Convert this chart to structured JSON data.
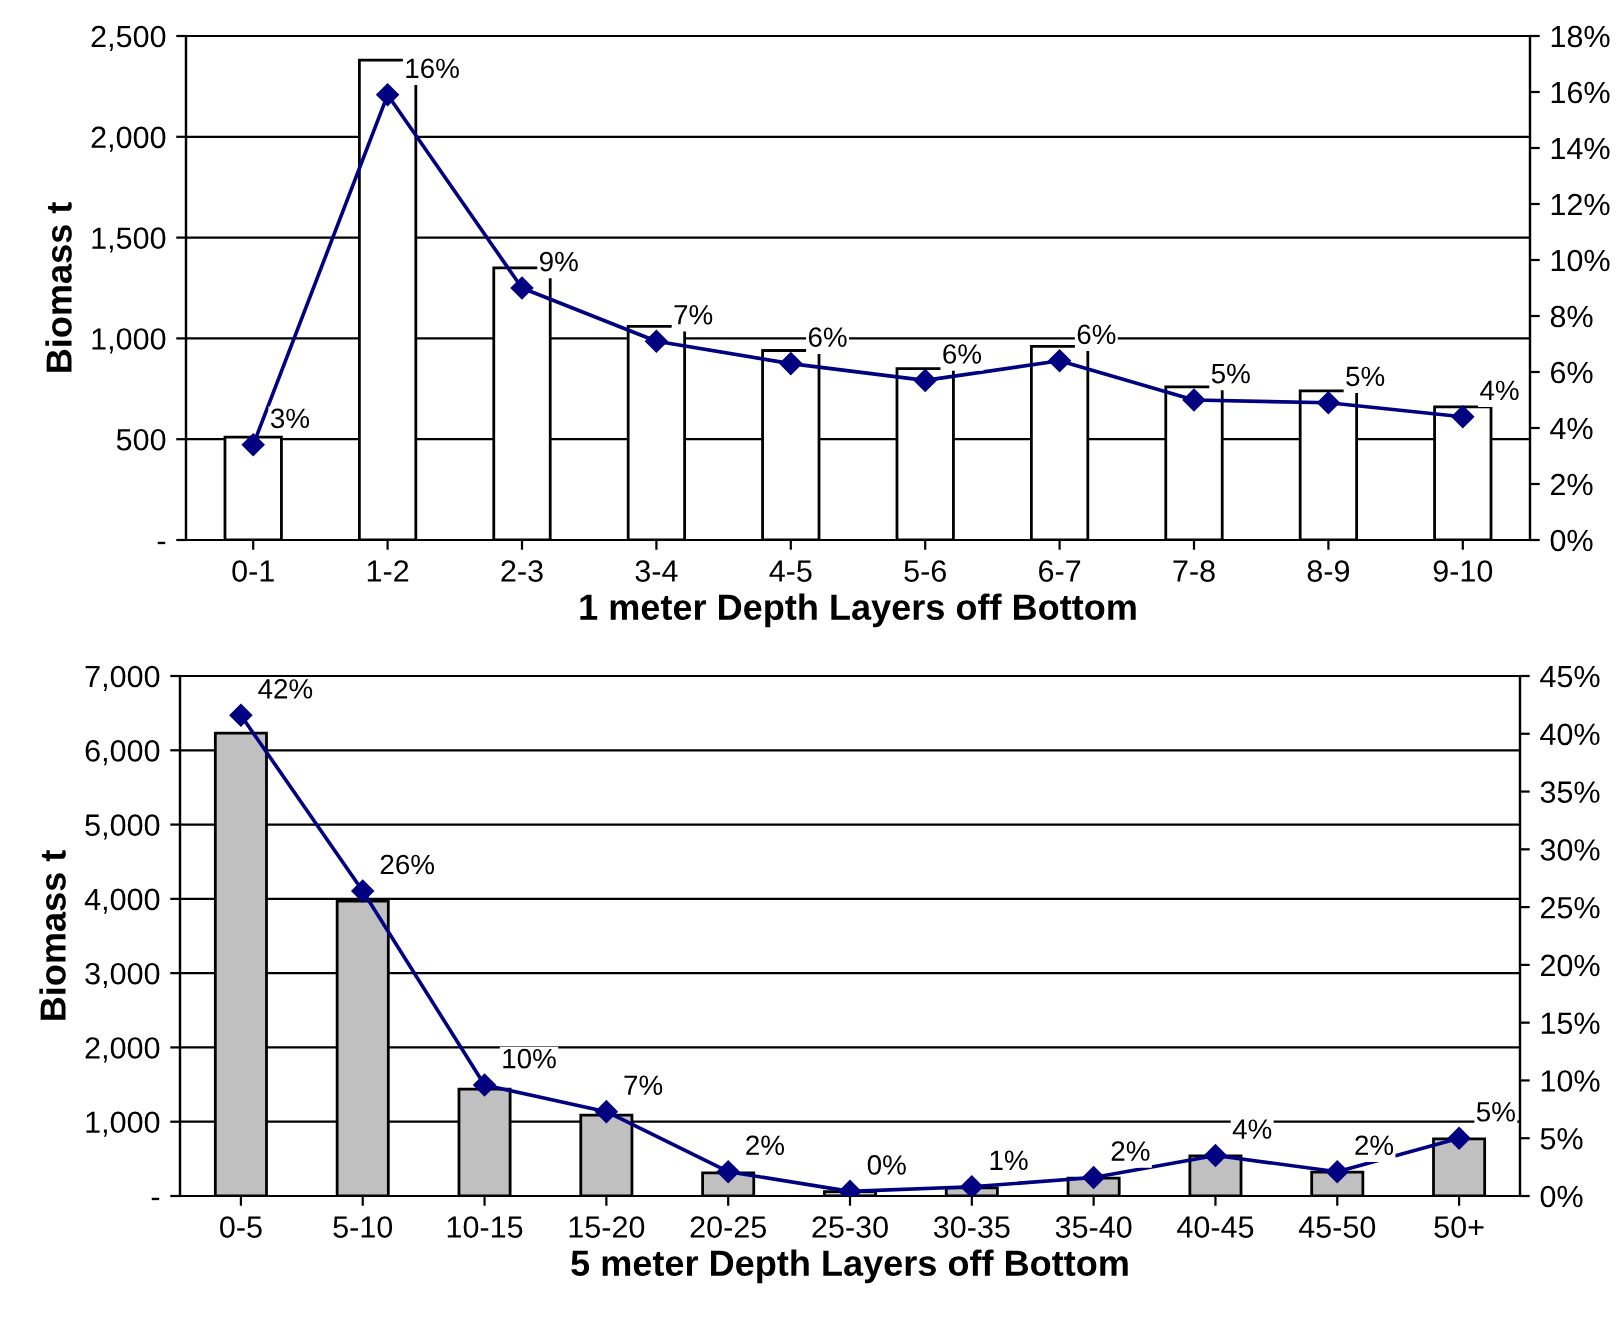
{
  "chart_data": [
    {
      "type": "bar",
      "xlabel": "1 meter Depth Layers off Bottom",
      "ylabel": "Biomass t",
      "categories": [
        "0-1",
        "1-2",
        "2-3",
        "3-4",
        "4-5",
        "5-6",
        "6-7",
        "7-8",
        "8-9",
        "9-10"
      ],
      "series": [
        {
          "color": "#ffffff",
          "values": [
            510,
            2380,
            1350,
            1060,
            940,
            850,
            960,
            760,
            740,
            660
          ]
        },
        {
          "type": "line",
          "axis": "y2",
          "color": "#000080",
          "values": [
            3.4,
            15.9,
            9.0,
            7.1,
            6.3,
            5.7,
            6.4,
            5.0,
            4.9,
            4.4
          ],
          "value_labels": [
            "3%",
            "16%",
            "9%",
            "7%",
            "6%",
            "6%",
            "6%",
            "5%",
            "5%",
            "4%"
          ]
        }
      ],
      "ylim": [
        0,
        2500
      ],
      "yticks": [
        {
          "value": 0,
          "label": "-"
        },
        {
          "value": 500,
          "label": "500"
        },
        {
          "value": 1000,
          "label": "1,000"
        },
        {
          "value": 1500,
          "label": "1,500"
        },
        {
          "value": 2000,
          "label": "2,000"
        },
        {
          "value": 2500,
          "label": "2,500"
        }
      ],
      "y2lim": [
        0,
        18
      ],
      "y2ticks": [
        {
          "value": 0,
          "label": "0%"
        },
        {
          "value": 2,
          "label": "2%"
        },
        {
          "value": 4,
          "label": "4%"
        },
        {
          "value": 6,
          "label": "6%"
        },
        {
          "value": 8,
          "label": "8%"
        },
        {
          "value": 10,
          "label": "10%"
        },
        {
          "value": 12,
          "label": "12%"
        },
        {
          "value": 14,
          "label": "14%"
        },
        {
          "value": 16,
          "label": "16%"
        },
        {
          "value": 18,
          "label": "18%"
        }
      ],
      "grid": "y",
      "marker": "diamond"
    },
    {
      "type": "bar",
      "xlabel": "5 meter Depth Layers off Bottom",
      "ylabel": "Biomass t",
      "categories": [
        "0-5",
        "5-10",
        "10-15",
        "15-20",
        "20-25",
        "25-30",
        "30-35",
        "35-40",
        "40-45",
        "45-50",
        "50+"
      ],
      "series": [
        {
          "color": "#c0c0c0",
          "values": [
            6230,
            3970,
            1440,
            1090,
            310,
            60,
            110,
            240,
            540,
            320,
            770
          ]
        },
        {
          "type": "line",
          "axis": "y2",
          "color": "#000080",
          "values": [
            41.6,
            26.4,
            9.6,
            7.3,
            2.1,
            0.4,
            0.8,
            1.6,
            3.5,
            2.1,
            5.0
          ],
          "value_labels": [
            "42%",
            "26%",
            "10%",
            "7%",
            "2%",
            "0%",
            "1%",
            "2%",
            "4%",
            "2%",
            "5%"
          ]
        }
      ],
      "ylim": [
        0,
        7000
      ],
      "yticks": [
        {
          "value": 0,
          "label": "-"
        },
        {
          "value": 1000,
          "label": "1,000"
        },
        {
          "value": 2000,
          "label": "2,000"
        },
        {
          "value": 3000,
          "label": "3,000"
        },
        {
          "value": 4000,
          "label": "4,000"
        },
        {
          "value": 5000,
          "label": "5,000"
        },
        {
          "value": 6000,
          "label": "6,000"
        },
        {
          "value": 7000,
          "label": "7,000"
        }
      ],
      "y2lim": [
        0,
        45
      ],
      "y2ticks": [
        {
          "value": 0,
          "label": "0%"
        },
        {
          "value": 5,
          "label": "5%"
        },
        {
          "value": 10,
          "label": "10%"
        },
        {
          "value": 15,
          "label": "15%"
        },
        {
          "value": 20,
          "label": "20%"
        },
        {
          "value": 25,
          "label": "25%"
        },
        {
          "value": 30,
          "label": "30%"
        },
        {
          "value": 35,
          "label": "35%"
        },
        {
          "value": 40,
          "label": "40%"
        },
        {
          "value": 45,
          "label": "45%"
        }
      ],
      "grid": "y",
      "marker": "diamond"
    }
  ]
}
